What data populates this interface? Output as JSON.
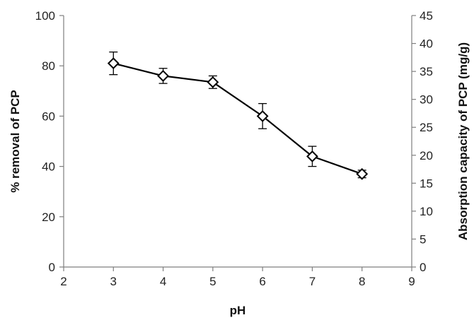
{
  "chart_data": {
    "type": "line",
    "title": "",
    "xlabel": "pH",
    "ylabel": "% removal of  PCP",
    "y2label": "Absorption capacity of PCP (mg/g)",
    "xlim": [
      2,
      9
    ],
    "ylim": [
      0,
      100
    ],
    "y2lim": [
      0,
      45
    ],
    "xticks": [
      "2",
      "3",
      "4",
      "5",
      "6",
      "7",
      "8",
      "9"
    ],
    "yticks": [
      "0",
      "20",
      "40",
      "60",
      "80",
      "100"
    ],
    "y2ticks": [
      "0",
      "5",
      "10",
      "15",
      "20",
      "25",
      "30",
      "35",
      "40",
      "45"
    ],
    "grid": false,
    "series": [
      {
        "x": [
          3,
          4,
          5,
          6,
          7,
          8
        ],
        "y": [
          81,
          76,
          73.5,
          60,
          44,
          37
        ],
        "error": [
          4.5,
          3,
          2.5,
          5,
          4,
          1.5
        ],
        "marker": "diamond",
        "color": "#000000"
      }
    ]
  }
}
